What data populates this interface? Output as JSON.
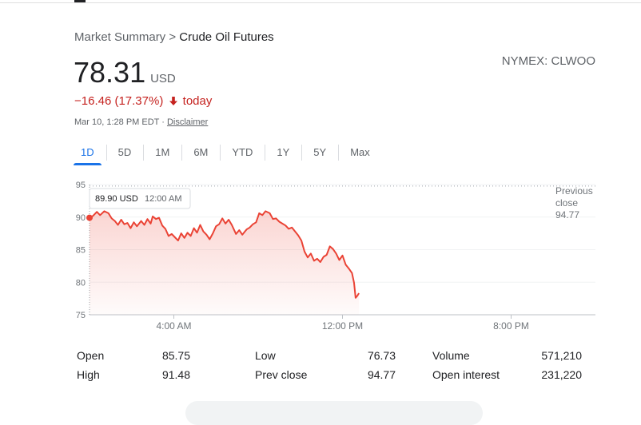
{
  "breadcrumb": {
    "parent": "Market Summary",
    "separator": ">",
    "current": "Crude Oil Futures"
  },
  "quote": {
    "price": "78.31",
    "currency": "USD",
    "ticker": "NYMEX: CLWOO",
    "change": "−16.46 (17.37%)",
    "change_period": "today",
    "timestamp": "Mar 10, 1:28 PM EDT",
    "timestamp_sep": "·",
    "disclaimer": "Disclaimer"
  },
  "range_tabs": [
    {
      "label": "1D",
      "active": true
    },
    {
      "label": "5D"
    },
    {
      "label": "1M"
    },
    {
      "label": "6M"
    },
    {
      "label": "YTD"
    },
    {
      "label": "1Y"
    },
    {
      "label": "5Y"
    },
    {
      "label": "Max"
    }
  ],
  "colors": {
    "line": "#ea4335",
    "down": "#c5221f",
    "accent": "#1a73e8"
  },
  "chart_data": {
    "type": "line",
    "y_ticks": [
      "95",
      "90",
      "85",
      "80",
      "75"
    ],
    "x_ticks": [
      "4:00 AM",
      "12:00 PM",
      "8:00 PM"
    ],
    "ylim": [
      75,
      95
    ],
    "x_range_hours": [
      0,
      24
    ],
    "x_tick_hours": [
      4,
      12,
      20
    ],
    "previous_close": {
      "label_lines": [
        "Previous",
        "close"
      ],
      "value": "94.77",
      "y": 94.77
    },
    "tooltip": {
      "value": "89.90 USD",
      "time": "12:00 AM",
      "x": 0,
      "y": 89.9
    },
    "series": [
      {
        "points": [
          [
            0,
            89.9
          ],
          [
            0.17,
            90.2
          ],
          [
            0.35,
            90.8
          ],
          [
            0.5,
            90.3
          ],
          [
            0.7,
            90.9
          ],
          [
            0.9,
            90.6
          ],
          [
            1.05,
            89.8
          ],
          [
            1.2,
            89.4
          ],
          [
            1.35,
            88.8
          ],
          [
            1.5,
            89.6
          ],
          [
            1.65,
            88.9
          ],
          [
            1.8,
            89.1
          ],
          [
            1.95,
            88.3
          ],
          [
            2.1,
            89.2
          ],
          [
            2.25,
            88.6
          ],
          [
            2.45,
            89.4
          ],
          [
            2.6,
            88.8
          ],
          [
            2.75,
            89.7
          ],
          [
            2.9,
            89.0
          ],
          [
            3.0,
            90.1
          ],
          [
            3.15,
            89.7
          ],
          [
            3.3,
            89.9
          ],
          [
            3.45,
            88.7
          ],
          [
            3.6,
            88.2
          ],
          [
            3.75,
            87.1
          ],
          [
            3.9,
            87.4
          ],
          [
            4.05,
            86.9
          ],
          [
            4.2,
            86.4
          ],
          [
            4.35,
            87.5
          ],
          [
            4.5,
            86.8
          ],
          [
            4.65,
            87.6
          ],
          [
            4.8,
            87.1
          ],
          [
            4.95,
            88.3
          ],
          [
            5.1,
            87.6
          ],
          [
            5.25,
            88.8
          ],
          [
            5.4,
            87.8
          ],
          [
            5.55,
            87.3
          ],
          [
            5.7,
            86.6
          ],
          [
            5.85,
            87.5
          ],
          [
            6.0,
            88.6
          ],
          [
            6.15,
            88.9
          ],
          [
            6.3,
            89.8
          ],
          [
            6.45,
            89.0
          ],
          [
            6.6,
            89.6
          ],
          [
            6.75,
            88.8
          ],
          [
            6.95,
            87.4
          ],
          [
            7.1,
            88.0
          ],
          [
            7.25,
            87.3
          ],
          [
            7.45,
            88.1
          ],
          [
            7.6,
            88.4
          ],
          [
            7.75,
            88.9
          ],
          [
            7.9,
            89.2
          ],
          [
            8.05,
            90.6
          ],
          [
            8.2,
            90.3
          ],
          [
            8.35,
            90.9
          ],
          [
            8.55,
            90.6
          ],
          [
            8.7,
            89.7
          ],
          [
            8.85,
            89.8
          ],
          [
            9.0,
            89.3
          ],
          [
            9.15,
            89.0
          ],
          [
            9.3,
            88.7
          ],
          [
            9.45,
            88.2
          ],
          [
            9.6,
            88.4
          ],
          [
            9.75,
            87.8
          ],
          [
            9.9,
            87.2
          ],
          [
            10.05,
            86.4
          ],
          [
            10.2,
            84.7
          ],
          [
            10.35,
            83.8
          ],
          [
            10.5,
            84.4
          ],
          [
            10.65,
            83.3
          ],
          [
            10.8,
            83.6
          ],
          [
            10.95,
            83.1
          ],
          [
            11.1,
            83.9
          ],
          [
            11.25,
            84.2
          ],
          [
            11.4,
            85.5
          ],
          [
            11.55,
            85.1
          ],
          [
            11.7,
            84.4
          ],
          [
            11.85,
            83.4
          ],
          [
            12.0,
            84.1
          ],
          [
            12.15,
            82.7
          ],
          [
            12.3,
            82.1
          ],
          [
            12.45,
            81.4
          ],
          [
            12.55,
            79.9
          ],
          [
            12.62,
            77.6
          ],
          [
            12.7,
            77.9
          ],
          [
            12.78,
            78.31
          ]
        ]
      }
    ]
  },
  "stats": [
    {
      "label": "Open",
      "value": "85.75"
    },
    {
      "label": "High",
      "value": "91.48"
    },
    {
      "label": "Low",
      "value": "76.73"
    },
    {
      "label": "Prev close",
      "value": "94.77"
    },
    {
      "label": "Volume",
      "value": "571,210"
    },
    {
      "label": "Open interest",
      "value": "231,220"
    }
  ]
}
